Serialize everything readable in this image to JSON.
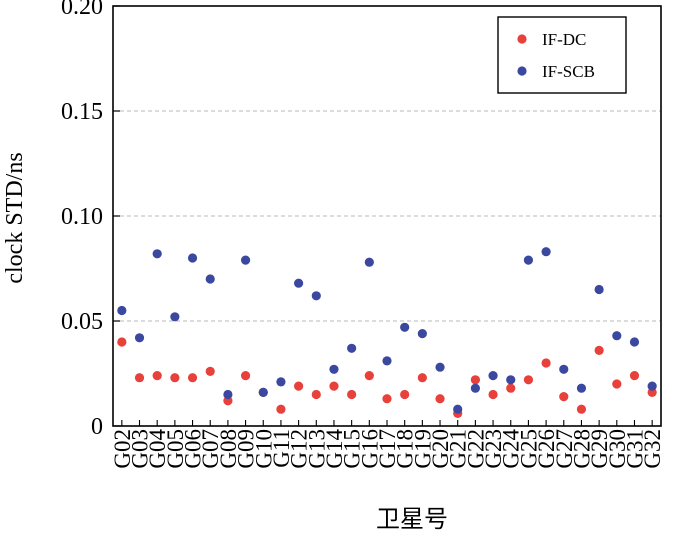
{
  "chart_data": {
    "type": "scatter",
    "title": "",
    "xlabel": "卫星号",
    "ylabel": "clock STD/ns",
    "ylim": [
      0,
      0.2
    ],
    "yticks": [
      0,
      0.05,
      0.1,
      0.15,
      0.2
    ],
    "ytick_labels": [
      "0",
      "0.05",
      "0.10",
      "0.15",
      "0.20"
    ],
    "grid": "horizontal dashed",
    "legend_position": "top-right",
    "categories": [
      "G02",
      "G03",
      "G04",
      "G05",
      "G06",
      "G07",
      "G08",
      "G09",
      "G10",
      "G11",
      "G12",
      "G13",
      "G14",
      "G15",
      "G16",
      "G17",
      "G18",
      "G19",
      "G20",
      "G21",
      "G22",
      "G23",
      "G24",
      "G25",
      "G26",
      "G27",
      "G28",
      "G29",
      "G30",
      "G31",
      "G32"
    ],
    "series": [
      {
        "name": "IF-DC",
        "color": "#e8403a",
        "values": [
          0.04,
          0.023,
          0.024,
          0.023,
          0.023,
          0.026,
          0.012,
          0.024,
          0.016,
          0.008,
          0.019,
          0.015,
          0.019,
          0.015,
          0.024,
          0.013,
          0.015,
          0.023,
          0.013,
          0.006,
          0.022,
          0.015,
          0.018,
          0.022,
          0.03,
          0.014,
          0.008,
          0.036,
          0.02,
          0.024,
          0.016
        ]
      },
      {
        "name": "IF-SCB",
        "color": "#3b48a0",
        "values": [
          0.055,
          0.042,
          0.082,
          0.052,
          0.08,
          0.07,
          0.015,
          0.079,
          0.016,
          0.021,
          0.068,
          0.062,
          0.027,
          0.037,
          0.078,
          0.031,
          0.047,
          0.044,
          0.028,
          0.008,
          0.018,
          0.024,
          0.022,
          0.079,
          0.083,
          0.027,
          0.018,
          0.065,
          0.043,
          0.04,
          0.019
        ]
      }
    ]
  }
}
